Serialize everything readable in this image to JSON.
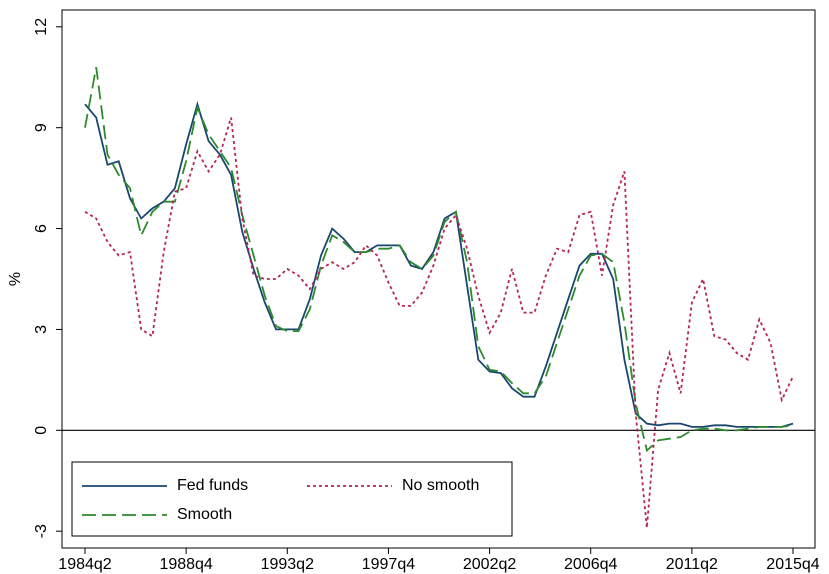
{
  "chart_data": {
    "type": "line",
    "y_label": "%",
    "categories": [
      "1984q2",
      null,
      null,
      null,
      null,
      null,
      null,
      null,
      null,
      "1988q4",
      null,
      null,
      null,
      null,
      null,
      null,
      null,
      null,
      "1993q2",
      null,
      null,
      null,
      null,
      null,
      null,
      null,
      null,
      "1997q4",
      null,
      null,
      null,
      null,
      null,
      null,
      null,
      null,
      "2002q2",
      null,
      null,
      null,
      null,
      null,
      null,
      null,
      null,
      "2006q4",
      null,
      null,
      null,
      null,
      null,
      null,
      null,
      null,
      "2011q2",
      null,
      null,
      null,
      null,
      null,
      null,
      null,
      null,
      "2015q4"
    ],
    "series": [
      {
        "name": "Fed funds",
        "color": "#1a476f",
        "dash": "none",
        "values": [
          9.7,
          9.3,
          7.9,
          8.0,
          6.9,
          6.3,
          6.6,
          6.8,
          7.2,
          8.5,
          9.7,
          8.6,
          8.2,
          7.6,
          5.9,
          4.8,
          3.8,
          3.0,
          3.0,
          3.0,
          3.9,
          5.2,
          6.0,
          5.7,
          5.3,
          5.3,
          5.5,
          5.5,
          5.5,
          4.9,
          4.8,
          5.3,
          6.3,
          6.5,
          4.3,
          2.1,
          1.75,
          1.7,
          1.25,
          1.0,
          1.0,
          1.9,
          2.9,
          3.9,
          4.9,
          5.25,
          5.25,
          4.5,
          2.1,
          0.5,
          0.2,
          0.15,
          0.2,
          0.2,
          0.1,
          0.1,
          0.15,
          0.15,
          0.1,
          0.1,
          0.1,
          0.1,
          0.1,
          0.2
        ]
      },
      {
        "name": "Smooth",
        "color": "#2d8a2d",
        "dash": "14 6",
        "values": [
          9.0,
          10.8,
          8.2,
          7.6,
          7.2,
          5.8,
          6.5,
          6.8,
          6.8,
          8.0,
          9.6,
          8.8,
          8.3,
          7.8,
          6.4,
          5.2,
          4.0,
          3.1,
          2.95,
          2.95,
          3.6,
          4.9,
          5.8,
          5.6,
          5.3,
          5.3,
          5.4,
          5.4,
          5.5,
          5.0,
          4.8,
          5.2,
          6.2,
          6.5,
          5.0,
          2.5,
          1.8,
          1.75,
          1.4,
          1.1,
          1.1,
          1.6,
          2.6,
          3.6,
          4.6,
          5.2,
          5.25,
          5.0,
          3.2,
          0.8,
          -0.6,
          -0.3,
          -0.25,
          -0.2,
          0.0,
          0.05,
          0.05,
          0.0,
          0.0,
          0.05,
          0.1,
          0.1,
          0.1,
          0.15
        ]
      },
      {
        "name": "No smooth",
        "color": "#b5245a",
        "dash": "3 3",
        "values": [
          6.5,
          6.3,
          5.6,
          5.2,
          5.3,
          3.0,
          2.8,
          5.3,
          7.1,
          7.2,
          8.3,
          7.7,
          8.2,
          9.3,
          6.3,
          4.6,
          4.5,
          4.5,
          4.8,
          4.6,
          4.2,
          4.8,
          5.0,
          4.8,
          5.0,
          5.5,
          5.2,
          4.4,
          3.7,
          3.7,
          4.1,
          4.9,
          6.0,
          6.4,
          5.4,
          4.0,
          2.9,
          3.5,
          4.8,
          3.5,
          3.5,
          4.6,
          5.4,
          5.3,
          6.4,
          6.5,
          4.6,
          6.7,
          7.7,
          0.5,
          -2.9,
          1.2,
          2.3,
          1.1,
          3.8,
          4.5,
          2.8,
          2.7,
          2.3,
          2.1,
          3.3,
          2.6,
          0.9,
          1.6
        ]
      }
    ],
    "ylim": [
      -3.5,
      12.5
    ],
    "yticks": [
      -3,
      0,
      3,
      6,
      9,
      12
    ],
    "hline": 0,
    "legend": "lower left"
  }
}
